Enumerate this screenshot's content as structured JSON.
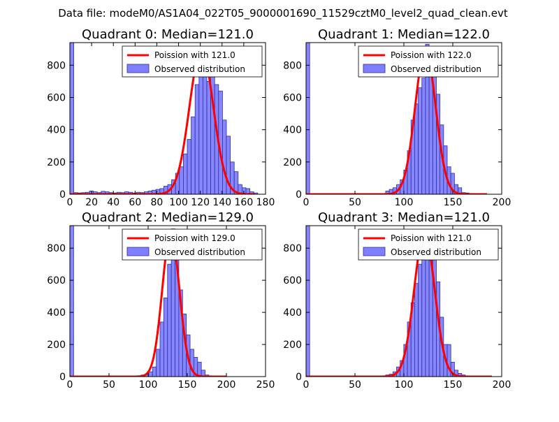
{
  "suptitle": "Data file: modeM0/AS1A04_022T05_9000001690_11529cztM0_level2_quad_clean.evt",
  "colors": {
    "bar_fill": "#7f7fff",
    "bar_edge": "#2e2e9e",
    "fit_line": "#ff0000",
    "background": "#ffffff"
  },
  "chart_data": [
    {
      "type": "bar",
      "title": "Quadrant 0: Median=121.0",
      "xlim": [
        0,
        180
      ],
      "ylim": [
        0,
        940
      ],
      "xticks": [
        "0",
        "20",
        "40",
        "60",
        "80",
        "100",
        "120",
        "140",
        "160",
        "180"
      ],
      "yticks": [
        "0",
        "200",
        "400",
        "600",
        "800"
      ],
      "legend": [
        "Poission with 121.0",
        "Observed distribution"
      ],
      "fit_mean": 121.0,
      "fit_sigma": 11,
      "fit_range": [
        0,
        170
      ],
      "bin_width": 3.6,
      "bins_x": [
        0,
        3.6,
        7.2,
        10.8,
        14.4,
        18,
        21.6,
        25.2,
        28.8,
        32.4,
        36,
        39.6,
        43.2,
        46.8,
        50.4,
        54,
        57.6,
        61.2,
        64.8,
        68.4,
        72,
        75.6,
        79.2,
        82.8,
        86.4,
        90,
        93.6,
        97.2,
        100.8,
        104.4,
        108,
        111.6,
        115.2,
        118.8,
        122.4,
        126,
        129.6,
        133.2,
        136.8,
        140.4,
        144,
        147.6,
        151.2,
        154.8,
        158.4,
        162,
        165.6,
        169.2
      ],
      "bins_y": [
        940,
        10,
        8,
        10,
        12,
        20,
        15,
        10,
        18,
        15,
        10,
        8,
        12,
        10,
        15,
        12,
        8,
        12,
        10,
        15,
        20,
        25,
        30,
        35,
        50,
        60,
        90,
        130,
        170,
        250,
        340,
        480,
        680,
        780,
        900,
        700,
        800,
        680,
        640,
        460,
        360,
        200,
        140,
        60,
        40,
        35,
        15,
        8
      ]
    },
    {
      "type": "bar",
      "title": "Quadrant 1: Median=122.0",
      "xlim": [
        0,
        200
      ],
      "ylim": [
        0,
        940
      ],
      "xticks": [
        "0",
        "50",
        "100",
        "150",
        "200"
      ],
      "yticks": [
        "0",
        "200",
        "400",
        "600",
        "800"
      ],
      "legend": [
        "Poission with 122.0",
        "Observed distribution"
      ],
      "fit_mean": 122.0,
      "fit_sigma": 10.5,
      "fit_range": [
        0,
        185
      ],
      "bin_width": 3.7,
      "bins_x": [
        0,
        81.4,
        85.1,
        88.8,
        92.5,
        96.2,
        99.9,
        103.6,
        107.3,
        111,
        114.7,
        118.4,
        122.1,
        125.8,
        129.5,
        133.2,
        136.9,
        140.6,
        144.3,
        148,
        151.7,
        155.4,
        159.1,
        162.8,
        166.5
      ],
      "bins_y": [
        940,
        20,
        30,
        40,
        60,
        90,
        150,
        270,
        460,
        560,
        660,
        720,
        930,
        830,
        760,
        620,
        430,
        300,
        170,
        130,
        60,
        40,
        10,
        8,
        5
      ]
    },
    {
      "type": "bar",
      "title": "Quadrant 2: Median=129.0",
      "xlim": [
        0,
        250
      ],
      "ylim": [
        0,
        940
      ],
      "xticks": [
        "0",
        "50",
        "100",
        "150",
        "200",
        "250"
      ],
      "yticks": [
        "0",
        "200",
        "400",
        "600",
        "800"
      ],
      "legend": [
        "Poission with 129.0",
        "Observed distribution"
      ],
      "fit_mean": 129.0,
      "fit_sigma": 11,
      "fit_range": [
        0,
        200
      ],
      "bin_width": 4.8,
      "bins_x": [
        0,
        86.4,
        91.2,
        96,
        100.8,
        105.6,
        110.4,
        115.2,
        120,
        124.8,
        129.6,
        134.4,
        139.2,
        144,
        148.8,
        153.6,
        158.4,
        163.2,
        168,
        172.8,
        177.6
      ],
      "bins_y": [
        940,
        5,
        10,
        15,
        30,
        60,
        170,
        340,
        490,
        700,
        920,
        880,
        540,
        390,
        260,
        170,
        120,
        90,
        40,
        10,
        5
      ]
    },
    {
      "type": "bar",
      "title": "Quadrant 3: Median=121.0",
      "xlim": [
        0,
        200
      ],
      "ylim": [
        0,
        940
      ],
      "xticks": [
        "0",
        "50",
        "100",
        "150",
        "200"
      ],
      "yticks": [
        "0",
        "200",
        "400",
        "600",
        "800"
      ],
      "legend": [
        "Poission with 121.0",
        "Observed distribution"
      ],
      "fit_mean": 121.0,
      "fit_sigma": 10.5,
      "fit_range": [
        0,
        190
      ],
      "bin_width": 3.7,
      "bins_x": [
        0,
        81.4,
        85.1,
        88.8,
        92.5,
        96.2,
        99.9,
        103.6,
        107.3,
        111,
        114.7,
        118.4,
        122.1,
        125.8,
        129.5,
        133.2,
        136.9,
        140.6,
        144.3,
        148,
        151.7,
        155.4,
        159.1,
        162.8,
        166.5
      ],
      "bins_y": [
        940,
        10,
        15,
        30,
        60,
        100,
        200,
        340,
        460,
        580,
        700,
        790,
        900,
        830,
        740,
        590,
        370,
        200,
        200,
        90,
        40,
        20,
        10,
        5,
        3
      ]
    }
  ]
}
